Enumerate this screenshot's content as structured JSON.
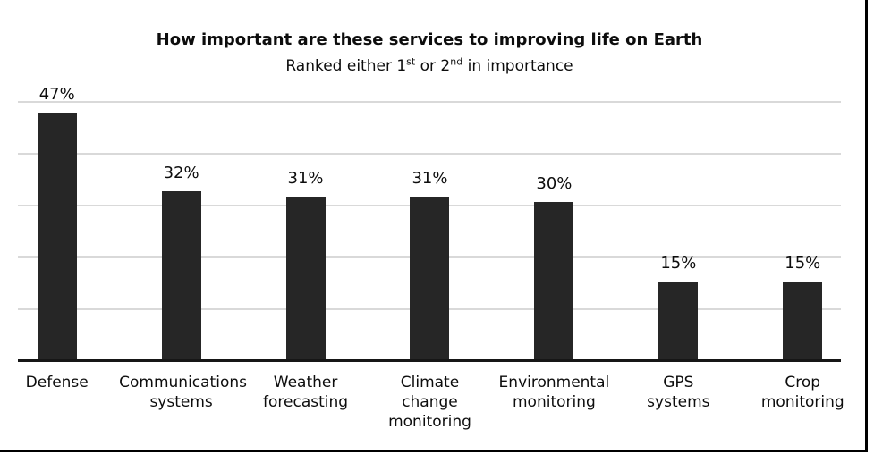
{
  "chart_data": {
    "type": "bar",
    "title": "How important are these services to improving life on Earth",
    "subtitle": {
      "plain": "Ranked either 1st or 2nd in importance",
      "pre": "Ranked either 1",
      "sup1": "st",
      "mid": " or 2",
      "sup2": "nd",
      "post": " in importance"
    },
    "categories": [
      "Defense",
      "Communications systems",
      "Weather forecasting",
      "Climate change monitoring",
      "Environmental monitoring",
      "GPS systems",
      "Crop monitoring"
    ],
    "tick_labels": [
      "Defense",
      "Communications\nsystems",
      "Weather\nforecasting",
      "Climate\nchange\nmonitoring",
      "Environmental\nmonitoring",
      "GPS\nsystems",
      "Crop\nmonitoring"
    ],
    "values": [
      47,
      32,
      31,
      31,
      30,
      15,
      15
    ],
    "value_labels": [
      "47%",
      "32%",
      "31%",
      "31%",
      "30%",
      "15%",
      "15%"
    ],
    "xlabel": "",
    "ylabel": "",
    "ylim": [
      0,
      50
    ],
    "gridlines_percent": [
      10,
      20,
      30,
      40,
      50
    ],
    "grid": true,
    "legend": "none",
    "bar_color": "#262626",
    "gridline_color": "#d9d9d9",
    "axis_color": "#161616",
    "text_color": "#0d0d0d",
    "background": "#ffffff"
  }
}
